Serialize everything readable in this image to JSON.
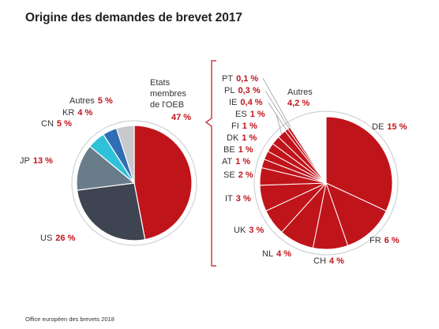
{
  "title": "Origine des demandes de brevet 2017",
  "source": "Office européen des brevets 2018",
  "colors": {
    "red": "#c0141b",
    "dark": "#3e4451",
    "slate": "#697c8a",
    "cyan": "#2fc1d7",
    "blue": "#2f6db5",
    "grey": "#c7c9cc",
    "text": "#333333"
  },
  "chart_data": [
    {
      "type": "pie",
      "title": "Origine des demandes de brevet 2017",
      "slices": [
        {
          "label": "Etats membres de l'OEB",
          "display_label": [
            "Etats",
            "membres",
            "de l'OEB"
          ],
          "value": 47,
          "value_text": "47 %",
          "color": "#c0141b"
        },
        {
          "label": "US",
          "value": 26,
          "value_text": "26 %",
          "color": "#3e4451"
        },
        {
          "label": "JP",
          "value": 13,
          "value_text": "13 %",
          "color": "#697c8a"
        },
        {
          "label": "CN",
          "value": 5,
          "value_text": "5 %",
          "color": "#2fc1d7"
        },
        {
          "label": "KR",
          "value": 4,
          "value_text": "4 %",
          "color": "#2f6db5"
        },
        {
          "label": "Autres",
          "value": 5,
          "value_text": "5 %",
          "color": "#c7c9cc"
        }
      ]
    },
    {
      "type": "pie",
      "title": "",
      "slices": [
        {
          "label": "DE",
          "value": 15,
          "value_text": "15 %"
        },
        {
          "label": "FR",
          "value": 6,
          "value_text": "6 %"
        },
        {
          "label": "CH",
          "value": 4,
          "value_text": "4 %"
        },
        {
          "label": "NL",
          "value": 4,
          "value_text": "4 %"
        },
        {
          "label": "UK",
          "value": 3,
          "value_text": "3 %"
        },
        {
          "label": "IT",
          "value": 3,
          "value_text": "3 %"
        },
        {
          "label": "SE",
          "value": 2,
          "value_text": "2 %"
        },
        {
          "label": "AT",
          "value": 1,
          "value_text": "1 %"
        },
        {
          "label": "BE",
          "value": 1,
          "value_text": "1 %"
        },
        {
          "label": "DK",
          "value": 1,
          "value_text": "1 %"
        },
        {
          "label": "FI",
          "value": 1,
          "value_text": "1 %"
        },
        {
          "label": "ES",
          "value": 1,
          "value_text": "1 %"
        },
        {
          "label": "IE",
          "value": 0.4,
          "value_text": "0,4 %"
        },
        {
          "label": "PL",
          "value": 0.3,
          "value_text": "0,3 %"
        },
        {
          "label": "PT",
          "value": 0.1,
          "value_text": "0,1 %"
        },
        {
          "label": "Autres",
          "value": 4.2,
          "value_text": "4,2 %"
        }
      ]
    }
  ]
}
